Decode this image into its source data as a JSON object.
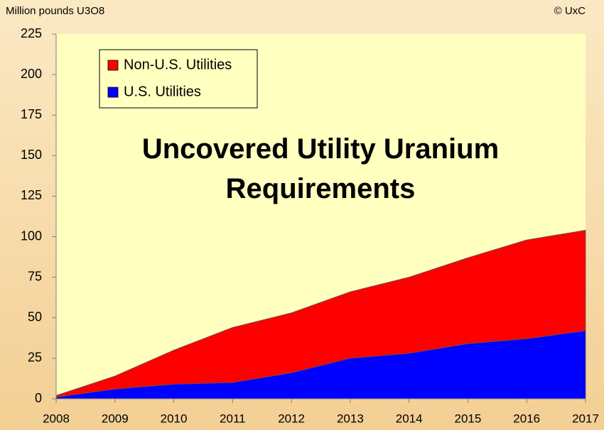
{
  "chart_data": {
    "type": "stacked_area",
    "title": "Uncovered Utility Uranium Requirements",
    "y_axis_label": "Million pounds U3O8",
    "source": "© UxC",
    "categories": [
      "2008",
      "2009",
      "2010",
      "2011",
      "2012",
      "2013",
      "2014",
      "2015",
      "2016",
      "2017"
    ],
    "series": [
      {
        "name": "U.S. Utilities",
        "color": "#0000ff",
        "values": [
          1,
          6,
          9,
          10,
          16,
          25,
          28,
          34,
          37,
          42
        ]
      },
      {
        "name": "Non-U.S. Utilities",
        "color": "#ff0000",
        "values": [
          1,
          8,
          21,
          34,
          37,
          41,
          47,
          53,
          61,
          62
        ]
      }
    ],
    "ylim": [
      0,
      225
    ],
    "yticks": [
      0,
      25,
      50,
      75,
      100,
      125,
      150,
      175,
      200,
      225
    ]
  }
}
